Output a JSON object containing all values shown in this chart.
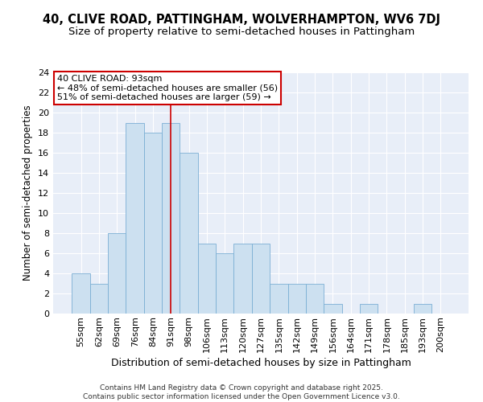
{
  "title": "40, CLIVE ROAD, PATTINGHAM, WOLVERHAMPTON, WV6 7DJ",
  "subtitle": "Size of property relative to semi-detached houses in Pattingham",
  "xlabel": "Distribution of semi-detached houses by size in Pattingham",
  "ylabel": "Number of semi-detached properties",
  "categories": [
    "55sqm",
    "62sqm",
    "69sqm",
    "76sqm",
    "84sqm",
    "91sqm",
    "98sqm",
    "106sqm",
    "113sqm",
    "120sqm",
    "127sqm",
    "135sqm",
    "142sqm",
    "149sqm",
    "156sqm",
    "164sqm",
    "171sqm",
    "178sqm",
    "185sqm",
    "193sqm",
    "200sqm"
  ],
  "values": [
    4,
    3,
    8,
    19,
    18,
    19,
    16,
    7,
    6,
    7,
    7,
    3,
    3,
    3,
    1,
    0,
    1,
    0,
    0,
    1,
    0
  ],
  "bar_color": "#cce0f0",
  "bar_edge_color": "#7bafd4",
  "vline_index": 5,
  "vline_color": "#cc0000",
  "annotation_title": "40 CLIVE ROAD: 93sqm",
  "annotation_line1": "← 48% of semi-detached houses are smaller (56)",
  "annotation_line2": "51% of semi-detached houses are larger (59) →",
  "annotation_box_facecolor": "#ffffff",
  "annotation_box_edgecolor": "#cc0000",
  "ylim": [
    0,
    24
  ],
  "yticks": [
    0,
    2,
    4,
    6,
    8,
    10,
    12,
    14,
    16,
    18,
    20,
    22,
    24
  ],
  "background_color": "#e8eef8",
  "grid_color": "#ffffff",
  "footer": "Contains HM Land Registry data © Crown copyright and database right 2025.\nContains public sector information licensed under the Open Government Licence v3.0.",
  "title_fontsize": 10.5,
  "subtitle_fontsize": 9.5,
  "xlabel_fontsize": 9,
  "ylabel_fontsize": 8.5,
  "tick_fontsize": 8,
  "annotation_fontsize": 8,
  "footer_fontsize": 6.5
}
